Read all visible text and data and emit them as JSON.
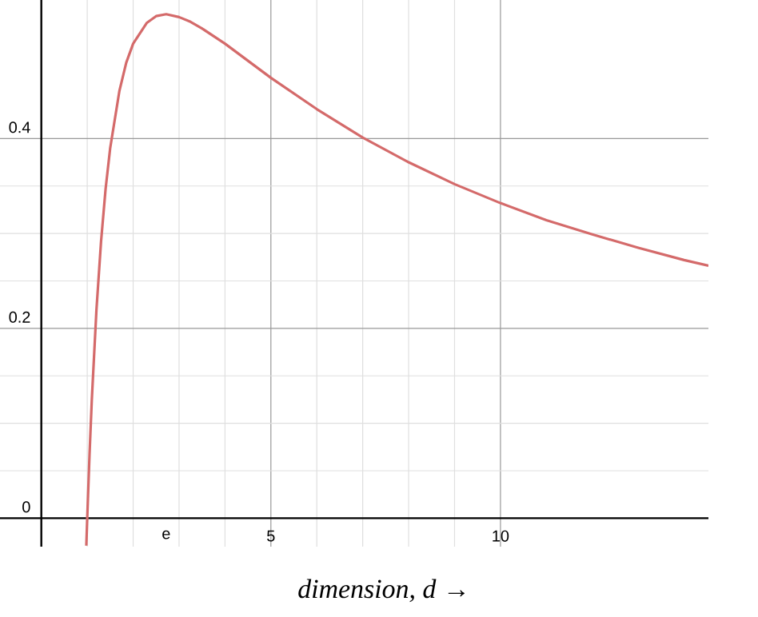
{
  "chart_data": {
    "type": "line",
    "xlabel": "*dimension, d* →",
    "x": [
      0.98,
      1,
      1.05,
      1.1,
      1.2,
      1.3,
      1.4,
      1.5,
      1.7,
      1.85,
      2,
      2.3,
      2.5,
      2.72,
      3,
      3.25,
      3.5,
      4,
      5,
      6,
      7,
      8,
      9,
      10,
      11,
      12,
      13,
      14,
      14.53
    ],
    "series": [
      {
        "color": "#d46a6a",
        "values": [
          -0.029,
          0,
          0.067,
          0.125,
          0.219,
          0.291,
          0.347,
          0.39,
          0.45,
          0.48,
          0.5,
          0.522,
          0.529,
          0.531,
          0.528,
          0.523,
          0.516,
          0.5,
          0.464,
          0.431,
          0.401,
          0.375,
          0.352,
          0.332,
          0.314,
          0.299,
          0.285,
          0.272,
          0.266
        ]
      }
    ],
    "xlim": [
      -0.9,
      14.53
    ],
    "ylim": [
      -0.03,
      0.546
    ],
    "xticks": [
      {
        "value": 0,
        "label": null
      },
      {
        "value": 2.72,
        "label": "e"
      },
      5,
      10
    ],
    "yticks": [
      0,
      0.2,
      0.4
    ],
    "grid": true,
    "marker": "none",
    "line_style": "solid"
  }
}
